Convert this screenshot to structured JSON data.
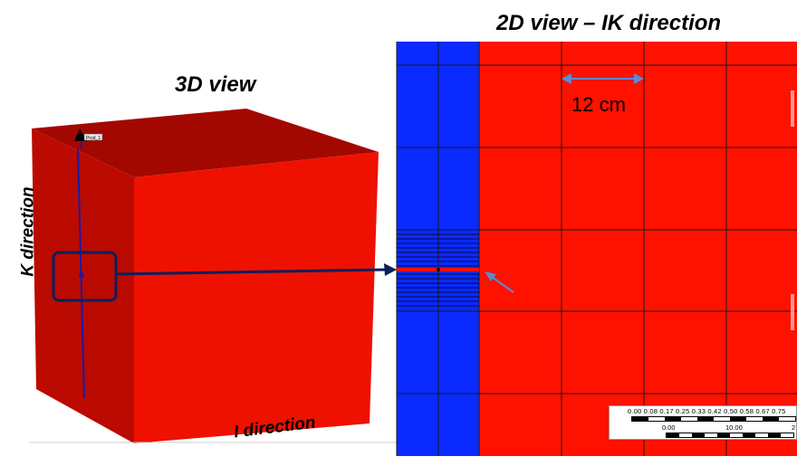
{
  "titles": {
    "view_3d": "3D view",
    "view_2d": "2D view –  IK direction"
  },
  "axes": {
    "k_direction": "K direction",
    "i_direction": "I direction"
  },
  "annotations": {
    "cell_size": "12 cm",
    "well_tag": "Prod_1"
  },
  "scale_bar": {
    "upper_ticks": "0.00 0.08 0.17 0.25 0.33 0.42 0.50 0.58 0.67 0.75",
    "lower_tick_start": "0.00",
    "lower_tick_mid": "10.00",
    "lower_tick_end": "2"
  },
  "colors": {
    "block_front": "#ee1100",
    "block_side": "#bb0a00",
    "block_top": "#a30800",
    "grid_red": "#ff1100",
    "grid_blue": "#0a2aff",
    "well_line": "#1a1aa6",
    "arrow": "#0d1f5c",
    "pointer": "#5b8ad6"
  }
}
